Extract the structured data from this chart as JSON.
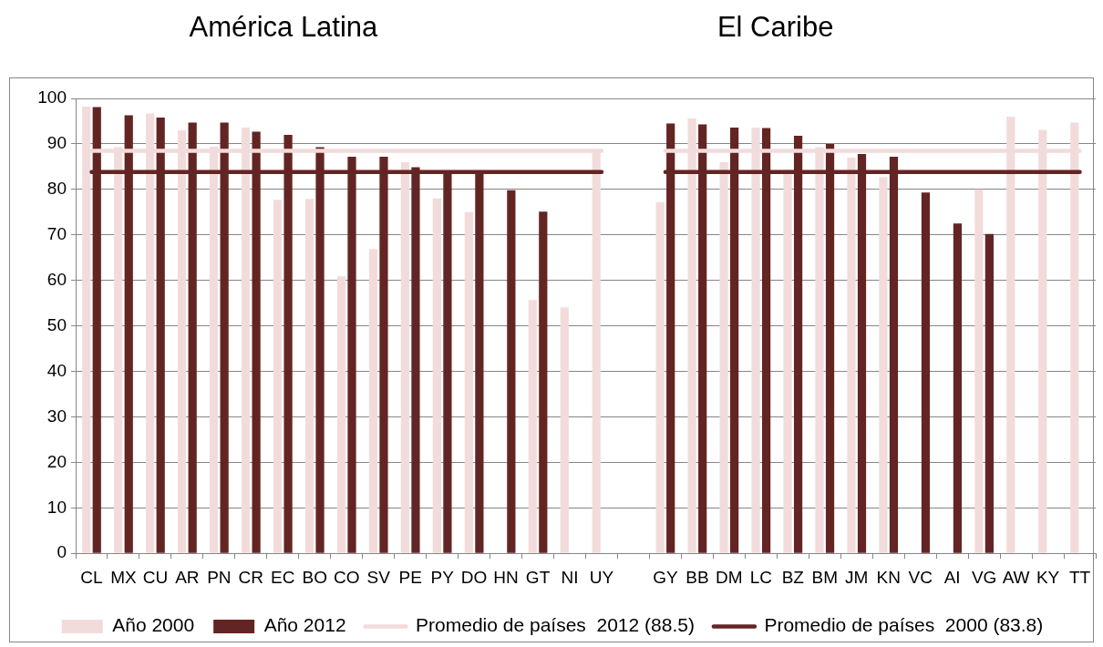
{
  "chart_data": {
    "type": "bar",
    "annotations": [
      "América Latina",
      "El Caribe"
    ],
    "categories": [
      "CL",
      "MX",
      "CU",
      "AR",
      "PN",
      "CR",
      "EC",
      "BO",
      "CO",
      "SV",
      "PE",
      "PY",
      "DO",
      "HN",
      "GT",
      "NI",
      "UY",
      null,
      "GY",
      "BB",
      "DM",
      "LC",
      "BZ",
      "BM",
      "JM",
      "KN",
      "VC",
      "AI",
      "VG",
      "AW",
      "KY",
      "TT"
    ],
    "series": [
      {
        "name": "Año 2000",
        "color": "#f2dcdb",
        "values": [
          98.2,
          89.3,
          96.7,
          93,
          89.4,
          93.6,
          77.7,
          77.9,
          60.9,
          66.9,
          86,
          78,
          75,
          null,
          55.7,
          54.1,
          88.8,
          null,
          77.2,
          95.6,
          86,
          93.6,
          84.4,
          89.3,
          87,
          82.7,
          null,
          null,
          80,
          96,
          93.1,
          94.7
        ]
      },
      {
        "name": "Año 2012",
        "color": "#632523",
        "values": [
          98.1,
          96.3,
          95.8,
          94.7,
          94.7,
          92.7,
          92,
          89.3,
          87.2,
          87.2,
          84.9,
          83.5,
          83.8,
          79.8,
          75.1,
          null,
          null,
          null,
          94.5,
          94.3,
          93.6,
          93.5,
          91.8,
          90,
          87.8,
          87.2,
          79.3,
          72.5,
          70.2,
          null,
          null,
          null
        ]
      },
      {
        "name": "Promedio de países  2012 (88.5)",
        "type": "line",
        "color": "#f2dcdb",
        "values": [
          88.5,
          88.5,
          88.5,
          88.5,
          88.5,
          88.5,
          88.5,
          88.5,
          88.5,
          88.5,
          88.5,
          88.5,
          88.5,
          88.5,
          88.5,
          88.5,
          88.5,
          null,
          88.5,
          88.5,
          88.5,
          88.5,
          88.5,
          88.5,
          88.5,
          88.5,
          88.5,
          88.5,
          88.5,
          88.5,
          88.5,
          88.5
        ]
      },
      {
        "name": "Promedio de países  2000 (83.8)",
        "type": "line",
        "color": "#632523",
        "values": [
          83.8,
          83.8,
          83.8,
          83.8,
          83.8,
          83.8,
          83.8,
          83.8,
          83.8,
          83.8,
          83.8,
          83.8,
          83.8,
          83.8,
          83.8,
          83.8,
          83.8,
          null,
          83.8,
          83.8,
          83.8,
          83.8,
          83.8,
          83.8,
          83.8,
          83.8,
          83.8,
          83.8,
          83.8,
          83.8,
          83.8,
          83.8
        ]
      }
    ],
    "ylim": [
      0,
      100
    ],
    "yticks": [
      0,
      10,
      20,
      30,
      40,
      50,
      60,
      70,
      80,
      90,
      100
    ],
    "grid": "y",
    "legend": "bottom",
    "marker": "none"
  }
}
